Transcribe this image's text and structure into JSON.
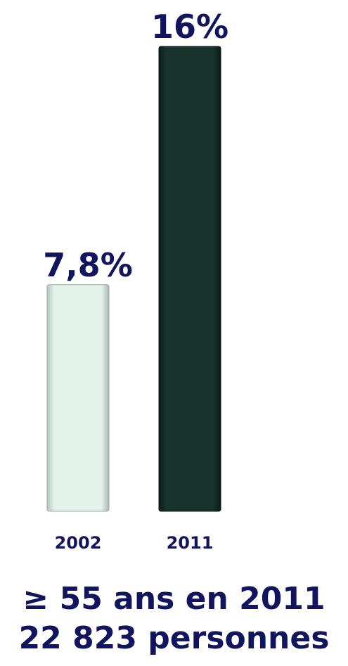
{
  "chart_data": {
    "type": "bar",
    "categories": [
      "2002",
      "2011"
    ],
    "values": [
      7.8,
      16
    ],
    "value_labels": [
      "7,8%",
      "16%"
    ],
    "ylim": [
      0,
      16
    ],
    "grid": false,
    "legend": "none",
    "bar_colors": [
      "#e4f2ec",
      "#17332b"
    ],
    "label_color": "#12145e"
  },
  "footer": {
    "line1": "≥ 55 ans en 2011",
    "line2": "22 823 personnes"
  }
}
